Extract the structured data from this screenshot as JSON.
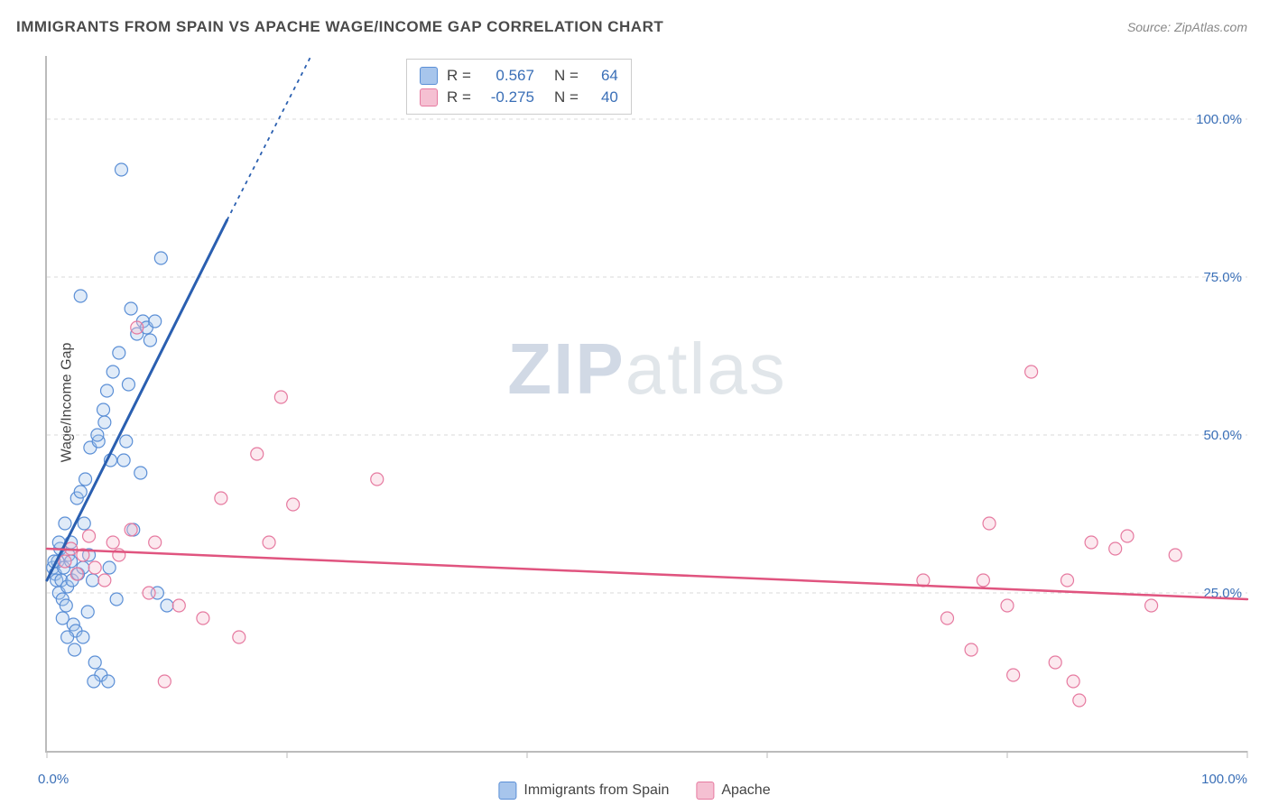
{
  "title": "IMMIGRANTS FROM SPAIN VS APACHE WAGE/INCOME GAP CORRELATION CHART",
  "source": "Source: ZipAtlas.com",
  "ylabel": "Wage/Income Gap",
  "watermark": {
    "part1": "ZIP",
    "part2": "atlas"
  },
  "chart": {
    "type": "scatter",
    "background_color": "#ffffff",
    "grid_color": "#d8d8d8",
    "axis_color": "#bbbbbb",
    "label_color": "#3a6fb7",
    "xlim": [
      0,
      100
    ],
    "ylim": [
      0,
      110
    ],
    "y_ticks": [
      {
        "value": 25,
        "label": "25.0%"
      },
      {
        "value": 50,
        "label": "50.0%"
      },
      {
        "value": 75,
        "label": "75.0%"
      },
      {
        "value": 100,
        "label": "100.0%"
      }
    ],
    "x_ticks": [
      0,
      20,
      40,
      60,
      80,
      100
    ],
    "x_axis_labels": {
      "left": "0.0%",
      "right": "100.0%"
    },
    "marker_radius": 7,
    "marker_stroke_width": 1.2,
    "marker_fill_opacity": 0.35,
    "series": [
      {
        "name": "Immigrants from Spain",
        "color_stroke": "#5b8fd6",
        "color_fill": "#a7c5ec",
        "trend": {
          "color": "#2a5fb0",
          "width": 3,
          "dash_extension": true,
          "x1": 0,
          "y1": 27,
          "x2": 15,
          "y2": 84,
          "x2_dash": 22,
          "y2_dash": 110
        },
        "points": [
          [
            0.5,
            29
          ],
          [
            0.7,
            28
          ],
          [
            0.8,
            27
          ],
          [
            0.9,
            30
          ],
          [
            1.0,
            25
          ],
          [
            1.1,
            32
          ],
          [
            1.2,
            27
          ],
          [
            1.3,
            24
          ],
          [
            1.4,
            29
          ],
          [
            1.5,
            36
          ],
          [
            1.6,
            23
          ],
          [
            1.7,
            26
          ],
          [
            1.8,
            31
          ],
          [
            2.0,
            30
          ],
          [
            2.1,
            27
          ],
          [
            2.2,
            20
          ],
          [
            2.4,
            19
          ],
          [
            2.5,
            40
          ],
          [
            2.6,
            28
          ],
          [
            2.8,
            41
          ],
          [
            3.0,
            18
          ],
          [
            3.2,
            43
          ],
          [
            3.4,
            22
          ],
          [
            3.6,
            48
          ],
          [
            3.8,
            27
          ],
          [
            4.0,
            14
          ],
          [
            4.3,
            49
          ],
          [
            4.5,
            12
          ],
          [
            4.8,
            52
          ],
          [
            5.0,
            57
          ],
          [
            5.2,
            29
          ],
          [
            5.5,
            60
          ],
          [
            5.8,
            24
          ],
          [
            6.0,
            63
          ],
          [
            6.2,
            92
          ],
          [
            6.4,
            46
          ],
          [
            6.8,
            58
          ],
          [
            7.0,
            70
          ],
          [
            7.2,
            35
          ],
          [
            7.5,
            66
          ],
          [
            7.8,
            44
          ],
          [
            8.0,
            68
          ],
          [
            8.3,
            67
          ],
          [
            8.6,
            65
          ],
          [
            9.0,
            68
          ],
          [
            9.2,
            25
          ],
          [
            9.5,
            78
          ],
          [
            10.0,
            23
          ],
          [
            2.0,
            33
          ],
          [
            2.8,
            72
          ],
          [
            3.0,
            29
          ],
          [
            3.5,
            31
          ],
          [
            4.2,
            50
          ],
          [
            4.7,
            54
          ],
          [
            5.3,
            46
          ],
          [
            6.6,
            49
          ],
          [
            1.3,
            21
          ],
          [
            1.7,
            18
          ],
          [
            2.3,
            16
          ],
          [
            3.9,
            11
          ],
          [
            5.1,
            11
          ],
          [
            3.1,
            36
          ],
          [
            1.0,
            33
          ],
          [
            0.6,
            30
          ]
        ]
      },
      {
        "name": "Apache",
        "color_stroke": "#e67aa0",
        "color_fill": "#f5c0d2",
        "trend": {
          "color": "#e0547f",
          "width": 2.5,
          "dash_extension": false,
          "x1": 0,
          "y1": 32,
          "x2": 100,
          "y2": 24
        },
        "points": [
          [
            1.5,
            30
          ],
          [
            2.0,
            32
          ],
          [
            2.5,
            28
          ],
          [
            3.0,
            31
          ],
          [
            3.5,
            34
          ],
          [
            4.0,
            29
          ],
          [
            4.8,
            27
          ],
          [
            5.5,
            33
          ],
          [
            6.0,
            31
          ],
          [
            7.0,
            35
          ],
          [
            7.5,
            67
          ],
          [
            8.5,
            25
          ],
          [
            9.0,
            33
          ],
          [
            9.8,
            11
          ],
          [
            11.0,
            23
          ],
          [
            13.0,
            21
          ],
          [
            14.5,
            40
          ],
          [
            16.0,
            18
          ],
          [
            17.5,
            47
          ],
          [
            18.5,
            33
          ],
          [
            19.5,
            56
          ],
          [
            20.5,
            39
          ],
          [
            27.5,
            43
          ],
          [
            73.0,
            27
          ],
          [
            75.0,
            21
          ],
          [
            77.0,
            16
          ],
          [
            78.0,
            27
          ],
          [
            78.5,
            36
          ],
          [
            80.0,
            23
          ],
          [
            80.5,
            12
          ],
          [
            82.0,
            60
          ],
          [
            84.0,
            14
          ],
          [
            85.0,
            27
          ],
          [
            85.5,
            11
          ],
          [
            87.0,
            33
          ],
          [
            89.0,
            32
          ],
          [
            90.0,
            34
          ],
          [
            92.0,
            23
          ],
          [
            94.0,
            31
          ],
          [
            86.0,
            8
          ]
        ]
      }
    ],
    "corr_legend": {
      "rows": [
        {
          "swatch_fill": "#a7c5ec",
          "swatch_stroke": "#5b8fd6",
          "r": "0.567",
          "n": "64"
        },
        {
          "swatch_fill": "#f5c0d2",
          "swatch_stroke": "#e67aa0",
          "r": "-0.275",
          "n": "40"
        }
      ],
      "r_label": "R =",
      "n_label": "N ="
    },
    "bottom_legend": [
      {
        "swatch_fill": "#a7c5ec",
        "swatch_stroke": "#5b8fd6",
        "label": "Immigrants from Spain"
      },
      {
        "swatch_fill": "#f5c0d2",
        "swatch_stroke": "#e67aa0",
        "label": "Apache"
      }
    ]
  }
}
